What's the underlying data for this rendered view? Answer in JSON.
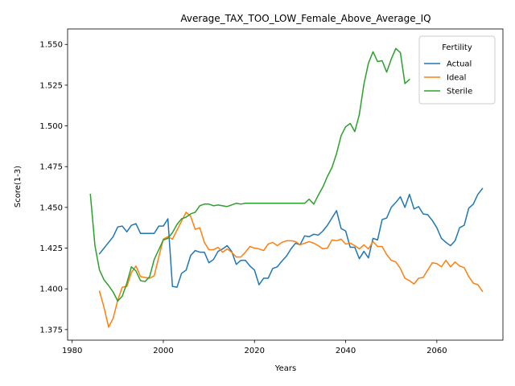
{
  "chart_data": {
    "type": "line",
    "title": "Average_TAX_TOO_LOW_Female_Above_Average_IQ",
    "xlabel": "Years",
    "ylabel": "Score(1-3)",
    "xlim": [
      1979,
      2074.5
    ],
    "ylim": [
      1.3685,
      1.5595
    ],
    "xticks": [
      1980,
      2000,
      2020,
      2040,
      2060
    ],
    "yticks": [
      1.375,
      1.4,
      1.425,
      1.45,
      1.475,
      1.5,
      1.525,
      1.55
    ],
    "ytick_labels": [
      "1.375",
      "1.400",
      "1.425",
      "1.450",
      "1.475",
      "1.500",
      "1.525",
      "1.550"
    ],
    "grid": false,
    "legend": {
      "title": "Fertility",
      "position": "top-right"
    },
    "series": [
      {
        "name": "Actual",
        "color": "#1f77b4",
        "x": [
          1986,
          1987,
          1988,
          1989,
          1990,
          1991,
          1992,
          1993,
          1994,
          1995,
          1996,
          1997,
          1998,
          1999,
          2000,
          2001,
          2002,
          2003,
          2004,
          2005,
          2006,
          2007,
          2008,
          2009,
          2010,
          2011,
          2012,
          2013,
          2014,
          2015,
          2016,
          2017,
          2018,
          2019,
          2020,
          2021,
          2022,
          2023,
          2024,
          2025,
          2026,
          2027,
          2028,
          2029,
          2030,
          2031,
          2032,
          2033,
          2034,
          2035,
          2036,
          2037,
          2038,
          2039,
          2040,
          2041,
          2042,
          2043,
          2044,
          2045,
          2046,
          2047,
          2048,
          2049,
          2050,
          2051,
          2052,
          2053,
          2054,
          2055,
          2056,
          2057,
          2058,
          2059,
          2060,
          2061,
          2062,
          2063,
          2064,
          2065,
          2066,
          2067,
          2068,
          2069,
          2070
        ],
        "values": [
          1.4215,
          1.425,
          1.4285,
          1.432,
          1.438,
          1.4385,
          1.435,
          1.439,
          1.44,
          1.434,
          1.434,
          1.434,
          1.434,
          1.4385,
          1.4385,
          1.443,
          1.4015,
          1.401,
          1.4095,
          1.4115,
          1.4205,
          1.4235,
          1.4225,
          1.4225,
          1.416,
          1.418,
          1.423,
          1.4245,
          1.4265,
          1.423,
          1.415,
          1.4175,
          1.4175,
          1.414,
          1.4115,
          1.4025,
          1.4065,
          1.4065,
          1.4125,
          1.4135,
          1.417,
          1.42,
          1.4245,
          1.428,
          1.427,
          1.4325,
          1.432,
          1.4335,
          1.433,
          1.4355,
          1.439,
          1.4435,
          1.448,
          1.437,
          1.4355,
          1.4255,
          1.4255,
          1.4185,
          1.423,
          1.419,
          1.431,
          1.43,
          1.4425,
          1.4435,
          1.45,
          1.453,
          1.4565,
          1.45,
          1.458,
          1.449,
          1.4505,
          1.446,
          1.4455,
          1.442,
          1.4375,
          1.431,
          1.4285,
          1.4265,
          1.4295,
          1.4375,
          1.439,
          1.4495,
          1.452,
          1.458,
          1.4615
        ]
      },
      {
        "name": "Ideal",
        "color": "#ff7f0e",
        "x": [
          1986,
          1987,
          1988,
          1989,
          1990,
          1991,
          1992,
          1993,
          1994,
          1995,
          1996,
          1997,
          1998,
          1999,
          2000,
          2001,
          2002,
          2003,
          2004,
          2005,
          2006,
          2007,
          2008,
          2009,
          2010,
          2011,
          2012,
          2013,
          2014,
          2015,
          2016,
          2017,
          2018,
          2019,
          2020,
          2021,
          2022,
          2023,
          2024,
          2025,
          2026,
          2027,
          2028,
          2029,
          2030,
          2031,
          2032,
          2033,
          2034,
          2035,
          2036,
          2037,
          2038,
          2039,
          2040,
          2041,
          2042,
          2043,
          2044,
          2045,
          2046,
          2047,
          2048,
          2049,
          2050,
          2051,
          2052,
          2053,
          2054,
          2055,
          2056,
          2057,
          2058,
          2059,
          2060,
          2061,
          2062,
          2063,
          2064,
          2065,
          2066,
          2067,
          2068,
          2069,
          2070
        ],
        "values": [
          1.3985,
          1.3885,
          1.3765,
          1.382,
          1.393,
          1.401,
          1.4015,
          1.41,
          1.414,
          1.4075,
          1.407,
          1.4065,
          1.408,
          1.4195,
          1.4305,
          1.432,
          1.4305,
          1.436,
          1.4415,
          1.447,
          1.4445,
          1.4365,
          1.4375,
          1.4285,
          1.424,
          1.424,
          1.4255,
          1.4225,
          1.4245,
          1.4225,
          1.4195,
          1.4195,
          1.4225,
          1.426,
          1.425,
          1.4245,
          1.4235,
          1.4275,
          1.4285,
          1.4265,
          1.4285,
          1.4295,
          1.4295,
          1.429,
          1.427,
          1.428,
          1.429,
          1.428,
          1.4265,
          1.4245,
          1.425,
          1.43,
          1.4295,
          1.4305,
          1.4275,
          1.428,
          1.4265,
          1.4245,
          1.427,
          1.4245,
          1.429,
          1.426,
          1.426,
          1.421,
          1.4175,
          1.4165,
          1.4125,
          1.4065,
          1.405,
          1.403,
          1.4065,
          1.407,
          1.4115,
          1.416,
          1.4155,
          1.4135,
          1.4175,
          1.4135,
          1.4165,
          1.414,
          1.413,
          1.4075,
          1.4035,
          1.4025,
          1.3985
        ]
      },
      {
        "name": "Sterile",
        "color": "#2ca02c",
        "x": [
          1984,
          1985,
          1986,
          1987,
          1988,
          1989,
          1990,
          1991,
          1992,
          1993,
          1994,
          1995,
          1996,
          1997,
          1998,
          1999,
          2000,
          2001,
          2002,
          2003,
          2004,
          2005,
          2006,
          2007,
          2008,
          2009,
          2010,
          2011,
          2012,
          2013,
          2014,
          2015,
          2016,
          2017,
          2018,
          2019,
          2020,
          2021,
          2022,
          2023,
          2024,
          2025,
          2026,
          2027,
          2028,
          2029,
          2030,
          2031,
          2032,
          2033,
          2034,
          2035,
          2036,
          2037,
          2038,
          2039,
          2040,
          2041,
          2042,
          2043,
          2044,
          2045,
          2046,
          2047,
          2048,
          2049,
          2050,
          2051,
          2052,
          2053,
          2054
        ],
        "values": [
          1.458,
          1.4265,
          1.4115,
          1.4055,
          1.402,
          1.398,
          1.3925,
          1.3955,
          1.4035,
          1.4135,
          1.411,
          1.405,
          1.4045,
          1.4075,
          1.418,
          1.424,
          1.43,
          1.431,
          1.4345,
          1.4395,
          1.443,
          1.444,
          1.446,
          1.447,
          1.451,
          1.452,
          1.452,
          1.451,
          1.4515,
          1.451,
          1.4505,
          1.4515,
          1.4525,
          1.452,
          1.4525,
          1.4525,
          1.4525,
          1.4525,
          1.4525,
          1.4525,
          1.4525,
          1.4525,
          1.4525,
          1.4525,
          1.4525,
          1.4525,
          1.4525,
          1.4525,
          1.455,
          1.452,
          1.4575,
          1.4625,
          1.469,
          1.4745,
          1.483,
          1.494,
          1.4995,
          1.5015,
          1.4965,
          1.507,
          1.5255,
          1.5385,
          1.5455,
          1.5395,
          1.54,
          1.533,
          1.541,
          1.5475,
          1.545,
          1.526,
          1.5285
        ]
      }
    ]
  }
}
